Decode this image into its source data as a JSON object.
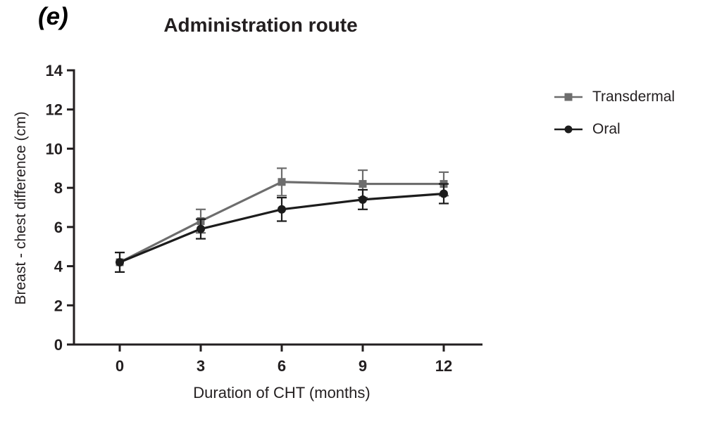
{
  "panel_label": "(e)",
  "chart_data": {
    "type": "line",
    "title": "Administration route",
    "xlabel": "Duration of CHT (months)",
    "ylabel": "Breast - chest difference (cm)",
    "x": [
      0,
      3,
      6,
      9,
      12
    ],
    "xticks": [
      0,
      3,
      6,
      9,
      12
    ],
    "yticks": [
      0,
      2,
      4,
      6,
      8,
      10,
      12,
      14
    ],
    "xlim": [
      0,
      12
    ],
    "ylim": [
      0,
      14
    ],
    "grid": false,
    "legend_position": "right",
    "axis_color": "#231f20",
    "error_bars": "symmetric, ± values in errors arrays",
    "series": [
      {
        "name": "Transdermal",
        "marker": "square",
        "color": "#6d6d6d",
        "values": [
          4.2,
          6.3,
          8.3,
          8.2,
          8.2
        ],
        "errors": [
          0.5,
          0.6,
          0.7,
          0.7,
          0.6
        ]
      },
      {
        "name": "Oral",
        "marker": "circle",
        "color": "#1c1c1c",
        "values": [
          4.2,
          5.9,
          6.9,
          7.4,
          7.7
        ],
        "errors": [
          0.5,
          0.5,
          0.6,
          0.5,
          0.5
        ]
      }
    ]
  }
}
